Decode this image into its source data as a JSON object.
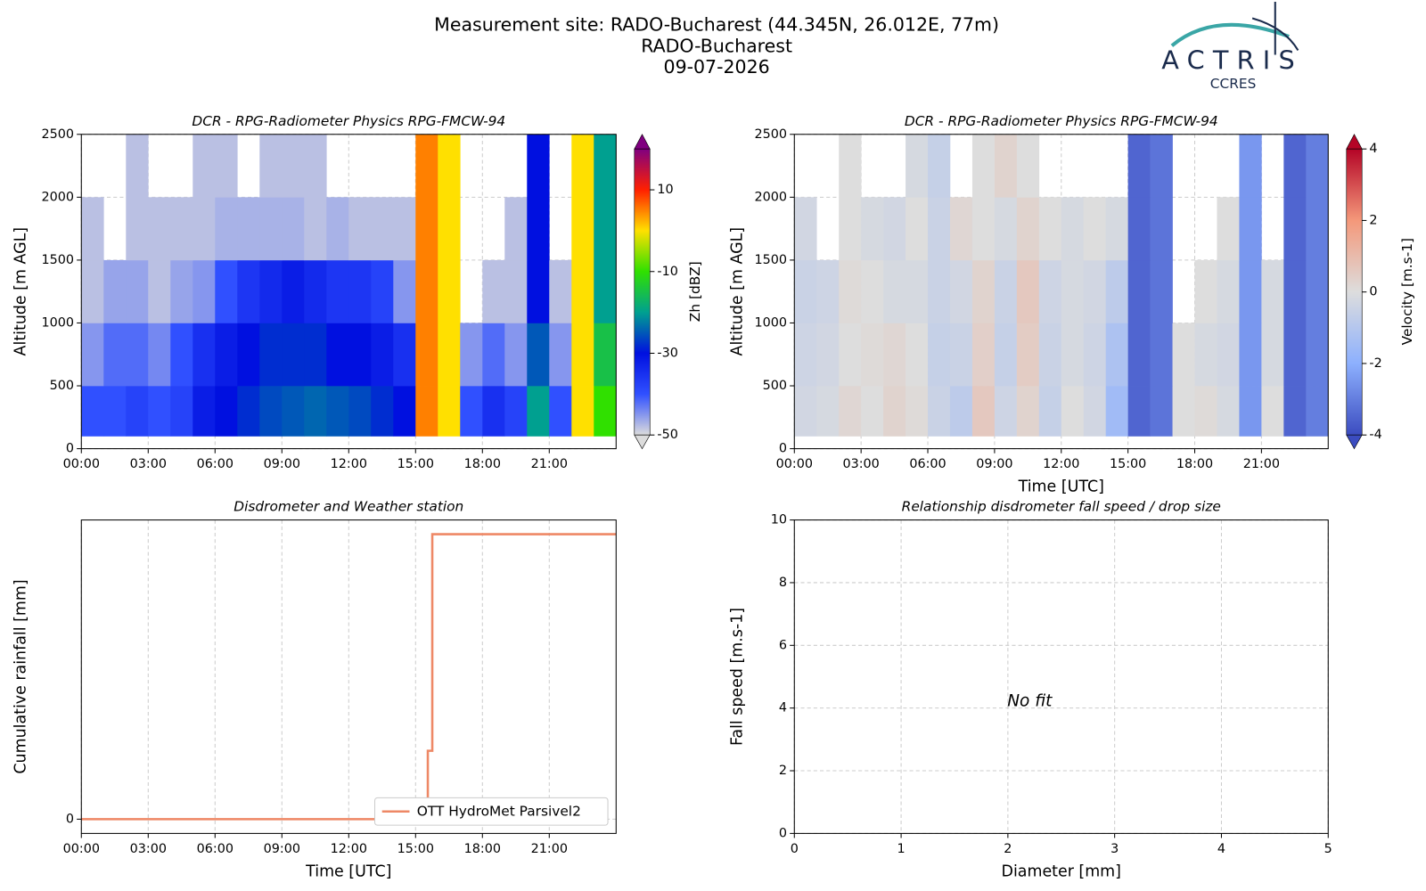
{
  "header": {
    "title": "Measurement site: RADO-Bucharest (44.345N, 26.012E, 77m)",
    "site": "RADO-Bucharest",
    "date": "09-07-2026"
  },
  "logo": {
    "name": "ACTRIS",
    "sub": "CCRES"
  },
  "chart_data": [
    {
      "type": "heatmap",
      "title": "DCR - RPG-Radiometer Physics RPG-FMCW-94",
      "ylabel": "Altitude [m AGL]",
      "x_bins": [
        0,
        1,
        2,
        3,
        4,
        5,
        6,
        7,
        8,
        9,
        10,
        11,
        12,
        13,
        14,
        15,
        16,
        17,
        18,
        19,
        20,
        21,
        22,
        23,
        24
      ],
      "y_bins": [
        100,
        500,
        1000,
        1500,
        2000,
        2500
      ],
      "values": [
        [
          -40,
          -40,
          -38,
          -40,
          -38,
          -32,
          -30,
          -28,
          -26,
          -25,
          -24,
          -25,
          -26,
          -28,
          -30,
          5,
          0,
          -40,
          -35,
          -38,
          -20,
          -40,
          0,
          -10
        ],
        [
          -45,
          -42,
          -42,
          -44,
          -40,
          -35,
          -32,
          -30,
          -28,
          -28,
          -28,
          -30,
          -30,
          -32,
          -35,
          5,
          0,
          -45,
          -42,
          -45,
          -25,
          -45,
          0,
          -15
        ],
        [
          -48,
          -46,
          -46,
          -48,
          -46,
          -45,
          -40,
          -36,
          -34,
          -32,
          -34,
          -36,
          -36,
          -38,
          -45,
          5,
          0,
          null,
          -48,
          -48,
          -30,
          -48,
          0,
          -20
        ],
        [
          -48,
          null,
          -48,
          -48,
          -48,
          -48,
          -47,
          -47,
          -47,
          -47,
          -48,
          -47,
          -48,
          -48,
          -48,
          5,
          0,
          null,
          null,
          -48,
          -30,
          null,
          0,
          -20
        ],
        [
          null,
          null,
          -48,
          null,
          null,
          -48,
          -48,
          null,
          -48,
          -48,
          -48,
          null,
          null,
          null,
          null,
          5,
          0,
          null,
          null,
          null,
          -30,
          null,
          0,
          -20
        ]
      ],
      "xlim": [
        0,
        24
      ],
      "xticks": [
        {
          "value": 0,
          "label": "00:00"
        },
        {
          "value": 3,
          "label": "03:00"
        },
        {
          "value": 6,
          "label": "06:00"
        },
        {
          "value": 9,
          "label": "09:00"
        },
        {
          "value": 12,
          "label": "12:00"
        },
        {
          "value": 15,
          "label": "15:00"
        },
        {
          "value": 18,
          "label": "18:00"
        },
        {
          "value": 21,
          "label": "21:00"
        }
      ],
      "ylim": [
        0,
        2500
      ],
      "yticks": [
        0,
        500,
        1000,
        1500,
        2000,
        2500
      ],
      "grid": true,
      "colorbar_label": "Zh [dBZ]",
      "clim": [
        -50,
        20
      ],
      "cticks": [
        -50,
        -30,
        -10,
        10
      ],
      "colormap": [
        "#dcdcdc",
        "#3050ff",
        "#0010e0",
        "#00a090",
        "#30e000",
        "#ffe000",
        "#ff2000",
        "#800080"
      ]
    },
    {
      "type": "heatmap",
      "title": "DCR - RPG-Radiometer Physics RPG-FMCW-94",
      "ylabel": "Altitude [m AGL]",
      "xlabel": "Time [UTC]",
      "x_bins": [
        0,
        1,
        2,
        3,
        4,
        5,
        6,
        7,
        8,
        9,
        10,
        11,
        12,
        13,
        14,
        15,
        16,
        17,
        18,
        19,
        20,
        21,
        22,
        23,
        24
      ],
      "y_bins": [
        100,
        500,
        1000,
        1500,
        2000,
        2500
      ],
      "values": [
        [
          -0.3,
          -0.2,
          0.2,
          0,
          0.3,
          0.1,
          -0.5,
          -0.8,
          0.6,
          -0.4,
          0.3,
          -0.6,
          0,
          -0.3,
          -1.5,
          -3.5,
          -3.2,
          0,
          0.1,
          -0.2,
          -2.5,
          0,
          -3.5,
          -3
        ],
        [
          -0.4,
          -0.3,
          0,
          0.1,
          0.2,
          0,
          -0.6,
          -0.5,
          0.4,
          -0.6,
          0.5,
          -0.5,
          -0.2,
          -0.4,
          -1.2,
          -3.5,
          -3.2,
          0,
          -0.2,
          -0.3,
          -2.5,
          -0.2,
          -3.5,
          -3
        ],
        [
          -0.5,
          -0.4,
          0.1,
          0,
          -0.2,
          -0.2,
          -0.5,
          -0.3,
          0.3,
          -0.5,
          0.6,
          -0.4,
          -0.2,
          -0.3,
          -0.8,
          -3.5,
          -3.2,
          null,
          0,
          -0.2,
          -2.5,
          -0.2,
          -3.5,
          -3
        ],
        [
          -0.3,
          null,
          0,
          -0.2,
          -0.3,
          0,
          -0.5,
          0.2,
          0,
          -0.2,
          0.3,
          0,
          -0.2,
          0,
          -0.2,
          -3.5,
          -3.2,
          null,
          null,
          0,
          -2.5,
          null,
          -3.5,
          -3
        ],
        [
          null,
          null,
          0,
          null,
          null,
          -0.2,
          -0.6,
          null,
          0,
          0.3,
          0,
          null,
          null,
          null,
          null,
          -3.5,
          -3.2,
          null,
          null,
          null,
          -2.5,
          null,
          -3.5,
          -3
        ]
      ],
      "xlim": [
        0,
        24
      ],
      "xticks": [
        {
          "value": 0,
          "label": "00:00"
        },
        {
          "value": 3,
          "label": "03:00"
        },
        {
          "value": 6,
          "label": "06:00"
        },
        {
          "value": 9,
          "label": "09:00"
        },
        {
          "value": 12,
          "label": "12:00"
        },
        {
          "value": 15,
          "label": "15:00"
        },
        {
          "value": 18,
          "label": "18:00"
        },
        {
          "value": 21,
          "label": "21:00"
        }
      ],
      "ylim": [
        0,
        2500
      ],
      "yticks": [
        0,
        500,
        1000,
        1500,
        2000,
        2500
      ],
      "grid": true,
      "colorbar_label": "Velocity [m.s-1]",
      "clim": [
        -4,
        4
      ],
      "cticks": [
        -4,
        -2,
        0,
        2,
        4
      ],
      "colormap": [
        "#3b4cc0",
        "#8db0fe",
        "#dddddd",
        "#f4987a",
        "#b40426"
      ]
    },
    {
      "type": "line",
      "title": "Disdrometer and Weather station",
      "xlabel": "Time [UTC]",
      "ylabel": "Cumulative rainfall [mm]",
      "x": [
        0,
        15.55,
        15.55,
        15.75,
        15.75,
        24
      ],
      "series": [
        {
          "name": "OTT HydroMet Parsivel2",
          "color": "#ee8866",
          "values": [
            0,
            0,
            0.24,
            0.24,
            1,
            1
          ]
        }
      ],
      "xlim": [
        0,
        24
      ],
      "xticks": [
        {
          "value": 0,
          "label": "00:00"
        },
        {
          "value": 3,
          "label": "03:00"
        },
        {
          "value": 6,
          "label": "06:00"
        },
        {
          "value": 9,
          "label": "09:00"
        },
        {
          "value": 12,
          "label": "12:00"
        },
        {
          "value": 15,
          "label": "15:00"
        },
        {
          "value": 18,
          "label": "18:00"
        },
        {
          "value": 21,
          "label": "21:00"
        }
      ],
      "ylim": [
        -0.05,
        1.05
      ],
      "yticks": [
        0
      ],
      "grid": true,
      "legend": "lower right"
    },
    {
      "type": "scatter",
      "title": "Relationship disdrometer fall speed / drop size",
      "xlabel": "Diameter [mm]",
      "ylabel": "Fall speed [m.s-1]",
      "annotation": "No fit",
      "xlim": [
        0,
        5
      ],
      "xticks": [
        0,
        1,
        2,
        3,
        4,
        5
      ],
      "ylim": [
        0,
        10
      ],
      "yticks": [
        0,
        2,
        4,
        6,
        8,
        10
      ],
      "grid": true
    }
  ]
}
